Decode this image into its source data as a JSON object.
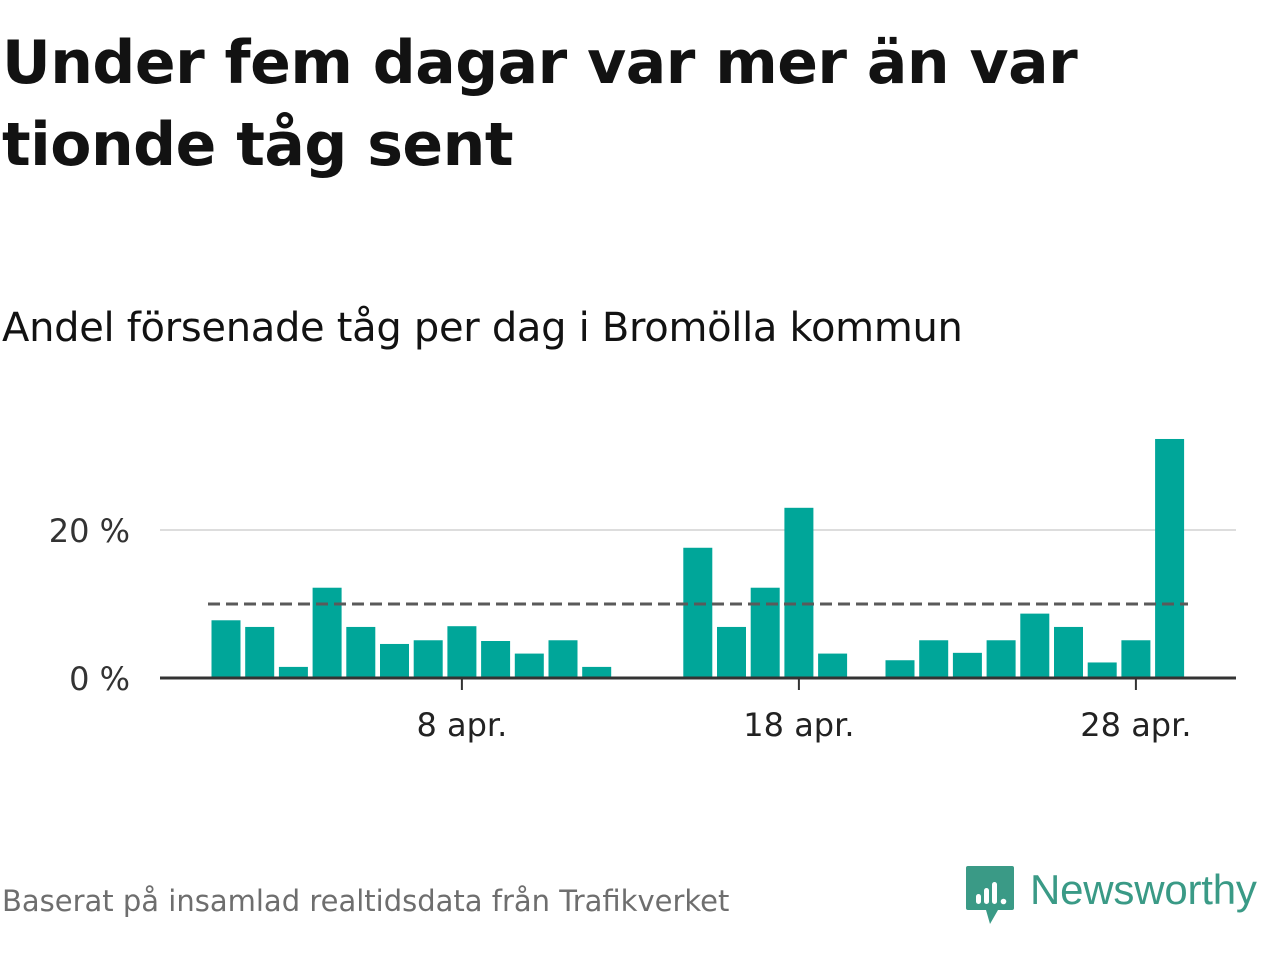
{
  "title": "Under fem dagar var mer än var tionde tåg sent",
  "subtitle": "Andel försenade tåg per dag i Bromölla kommun",
  "source": "Baserat på insamlad realtidsdata från Trafikverket",
  "brand": {
    "name": "Newsworthy",
    "icon": "newsworthy-logo-icon"
  },
  "colors": {
    "bar": "#00a699",
    "threshold": "#5a5a5a",
    "grid": "#dddddd",
    "axis": "#333333",
    "brand": "#3a9a86"
  },
  "chart_data": {
    "type": "bar",
    "ylabel": "",
    "xlabel": "",
    "ylim": [
      0,
      33
    ],
    "y_ticks": [
      {
        "value": 0,
        "label": "0 %"
      },
      {
        "value": 20,
        "label": "20 %"
      }
    ],
    "x_ticks": [
      {
        "day": 8,
        "label": "8 apr."
      },
      {
        "day": 18,
        "label": "18 apr."
      },
      {
        "day": 28,
        "label": "28 apr."
      }
    ],
    "threshold": 10,
    "grid": true,
    "series": [
      {
        "x": [
          "1 apr.",
          "2 apr.",
          "3 apr.",
          "4 apr.",
          "5 apr.",
          "6 apr.",
          "7 apr.",
          "8 apr.",
          "9 apr.",
          "10 apr.",
          "11 apr.",
          "12 apr.",
          "13 apr.",
          "14 apr.",
          "15 apr.",
          "16 apr.",
          "17 apr.",
          "18 apr.",
          "19 apr.",
          "20 apr.",
          "21 apr.",
          "22 apr.",
          "23 apr.",
          "24 apr.",
          "25 apr.",
          "26 apr.",
          "27 apr.",
          "28 apr.",
          "29 apr."
        ],
        "values": [
          7.8,
          6.9,
          1.5,
          12.2,
          6.9,
          4.6,
          5.1,
          7.0,
          5.0,
          3.3,
          5.1,
          1.5,
          null,
          null,
          17.6,
          6.9,
          12.2,
          23.0,
          3.3,
          null,
          2.4,
          5.1,
          3.4,
          5.1,
          8.7,
          6.9,
          2.1,
          5.1,
          32.3
        ]
      }
    ]
  }
}
